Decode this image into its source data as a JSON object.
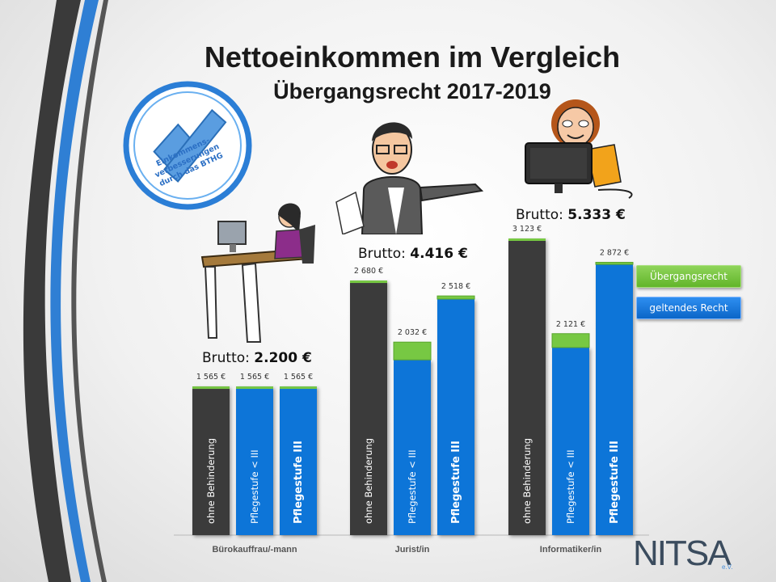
{
  "title": "Nettoeinkommen im Vergleich",
  "subtitle": "Übergangsrecht 2017-2019",
  "badge_text": [
    "Einkommens-",
    "verbesserungen",
    "durch das BTHG"
  ],
  "logo": {
    "text": "NITSA",
    "suffix": "e.V."
  },
  "legend": {
    "transition_label": "Übergangsrecht",
    "current_label": "geltendes Recht"
  },
  "colors": {
    "dark": "#3b3b3b",
    "blue": "#1075d8",
    "green": "#77c843",
    "text_white": "#ffffff"
  },
  "chart_data": {
    "type": "bar",
    "groups": [
      {
        "category": "Bürokauffrau/-mann",
        "brutto_label": "Brutto:",
        "brutto_value": "2.200 €",
        "bars": [
          {
            "label": "ohne Behinderung",
            "value": 1565,
            "value_label": "1 565 €",
            "kind": "dark",
            "current_value": 1565
          },
          {
            "label": "Pflegestufe < III",
            "value": 1565,
            "value_label": "1 565 €",
            "kind": "blue",
            "current_value": 1565
          },
          {
            "label": "Pflegestufe III",
            "value": 1565,
            "value_label": "1 565 €",
            "kind": "blue",
            "current_value": 1565
          }
        ]
      },
      {
        "category": "Jurist/in",
        "brutto_label": "Brutto:",
        "brutto_value": "4.416 €",
        "bars": [
          {
            "label": "ohne Behinderung",
            "value": 2680,
            "value_label": "2 680 €",
            "kind": "dark",
            "current_value": 2680
          },
          {
            "label": "Pflegestufe < III",
            "value": 2032,
            "value_label": "2 032 €",
            "kind": "blue",
            "current_value": 1845
          },
          {
            "label": "Pflegestufe III",
            "value": 2518,
            "value_label": "2 518 €",
            "kind": "blue",
            "current_value": 2485
          }
        ]
      },
      {
        "category": "Informatiker/in",
        "brutto_label": "Brutto:",
        "brutto_value": "5.333 €",
        "bars": [
          {
            "label": "ohne Behinderung",
            "value": 3123,
            "value_label": "3 123 €",
            "kind": "dark",
            "current_value": 3123
          },
          {
            "label": "Pflegestufe < III",
            "value": 2121,
            "value_label": "2 121 €",
            "kind": "blue",
            "current_value": 1975
          },
          {
            "label": "Pflegestufe III",
            "value": 2872,
            "value_label": "2 872 €",
            "kind": "blue",
            "current_value": 2850
          }
        ]
      }
    ],
    "ylim": [
      0,
      3123
    ],
    "grid": false,
    "legend_position": "right"
  }
}
